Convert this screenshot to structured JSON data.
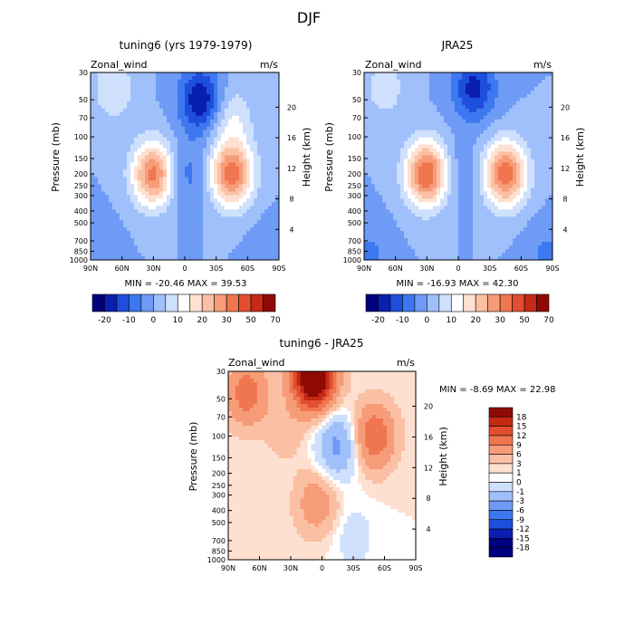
{
  "page_title": "DJF",
  "chart_data": [
    {
      "type": "heatmap",
      "title": "tuning6 (yrs 1979-1979)",
      "left_label": "Zonal_wind",
      "right_label": "m/s",
      "xlabel": "",
      "ylabel": "Pressure (mb)",
      "ylabel_right": "Height (km)",
      "x_ticks": [
        "90N",
        "60N",
        "30N",
        "0",
        "30S",
        "60S",
        "90S"
      ],
      "y_ticks": [
        30,
        50,
        70,
        100,
        150,
        200,
        250,
        300,
        400,
        500,
        700,
        850,
        1000
      ],
      "height_ticks": [
        4,
        8,
        12,
        16,
        20
      ],
      "ylim": [
        1000,
        30
      ],
      "stats": "MIN = -20.46   MAX =  39.53",
      "min": -20.46,
      "max": 39.53,
      "colorbar_labels": [
        -20,
        -10,
        0,
        10,
        20,
        30,
        50,
        70
      ],
      "features": [
        {
          "lat": 68,
          "p": 40,
          "value": 10
        },
        {
          "lat": 30,
          "p": 200,
          "value": 32
        },
        {
          "lat": -45,
          "p": 200,
          "value": 33
        },
        {
          "lat": -45,
          "p": 70,
          "value": 10
        },
        {
          "lat": 0,
          "p": 200,
          "value": -8
        },
        {
          "lat": -15,
          "p": 50,
          "value": -20
        },
        {
          "lat": 85,
          "p": 900,
          "value": -5
        },
        {
          "lat": -85,
          "p": 900,
          "value": -5
        }
      ]
    },
    {
      "type": "heatmap",
      "title": "JRA25",
      "left_label": "Zonal_wind",
      "right_label": "m/s",
      "xlabel": "",
      "ylabel": "Pressure (mb)",
      "ylabel_right": "Height (km)",
      "x_ticks": [
        "90N",
        "60N",
        "30N",
        "0",
        "30S",
        "60S",
        "90S"
      ],
      "y_ticks": [
        30,
        50,
        70,
        100,
        150,
        200,
        250,
        300,
        400,
        500,
        700,
        850,
        1000
      ],
      "height_ticks": [
        4,
        8,
        12,
        16,
        20
      ],
      "ylim": [
        1000,
        30
      ],
      "stats": "MIN = -16.93   MAX =  42.30",
      "min": -16.93,
      "max": 42.3,
      "colorbar_labels": [
        -20,
        -10,
        0,
        10,
        20,
        30,
        50,
        70
      ],
      "features": [
        {
          "lat": 30,
          "p": 200,
          "value": 36
        },
        {
          "lat": -45,
          "p": 200,
          "value": 34
        },
        {
          "lat": 70,
          "p": 40,
          "value": 8
        },
        {
          "lat": 0,
          "p": 200,
          "value": -5
        },
        {
          "lat": -15,
          "p": 40,
          "value": -17
        },
        {
          "lat": 85,
          "p": 900,
          "value": -6
        },
        {
          "lat": -85,
          "p": 900,
          "value": -6
        }
      ]
    },
    {
      "type": "heatmap",
      "title": "tuning6 - JRA25",
      "left_label": "Zonal_wind",
      "right_label": "m/s",
      "xlabel": "",
      "ylabel": "Pressure (mb)",
      "ylabel_right": "Height (km)",
      "x_ticks": [
        "90N",
        "60N",
        "30N",
        "0",
        "30S",
        "60S",
        "90S"
      ],
      "y_ticks": [
        30,
        50,
        70,
        100,
        150,
        200,
        250,
        300,
        400,
        500,
        700,
        850,
        1000
      ],
      "height_ticks": [
        4,
        8,
        12,
        16,
        20
      ],
      "ylim": [
        1000,
        30
      ],
      "stats": "MIN =   -8.69   MAX =  22.98",
      "min": -8.69,
      "max": 22.98,
      "colorbar_labels": [
        18,
        15,
        12,
        9,
        6,
        3,
        1,
        0,
        -1,
        -3,
        -6,
        -9,
        -12,
        -15,
        -18
      ],
      "features": [
        {
          "lat": 72,
          "p": 45,
          "value": 8
        },
        {
          "lat": 8,
          "p": 33,
          "value": 22
        },
        {
          "lat": -50,
          "p": 100,
          "value": 9
        },
        {
          "lat": 5,
          "p": 350,
          "value": 5
        },
        {
          "lat": -15,
          "p": 120,
          "value": -7
        },
        {
          "lat": 35,
          "p": 90,
          "value": 2
        },
        {
          "lat": -30,
          "p": 650,
          "value": -2
        }
      ]
    }
  ]
}
